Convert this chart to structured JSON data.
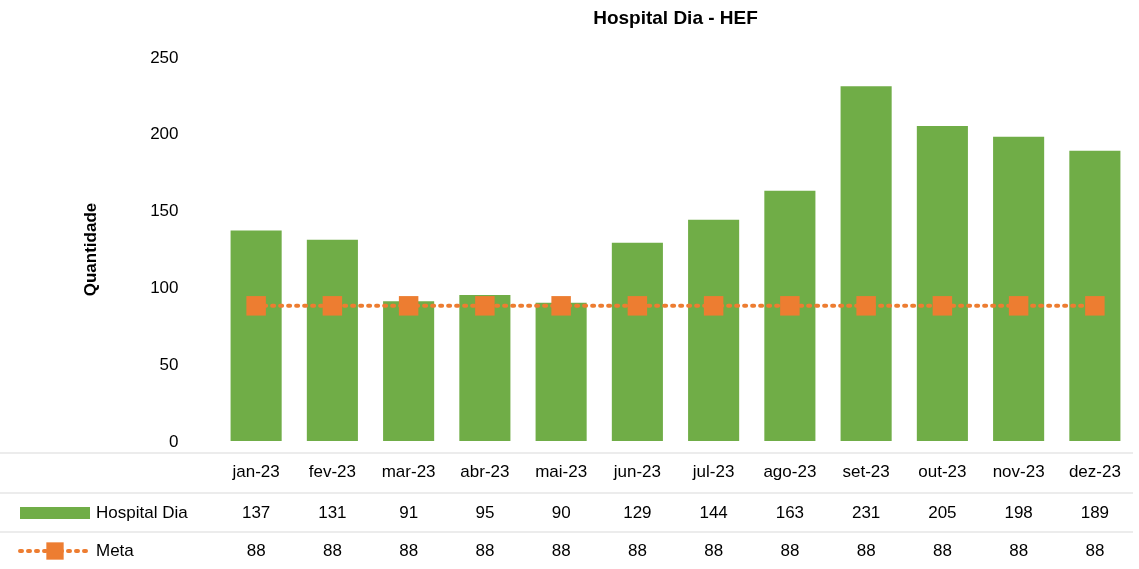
{
  "chart_data": {
    "type": "bar",
    "title": "Hospital Dia - HEF",
    "ylabel": "Quantidade",
    "categories": [
      "jan-23",
      "fev-23",
      "mar-23",
      "abr-23",
      "mai-23",
      "jun-23",
      "jul-23",
      "ago-23",
      "set-23",
      "out-23",
      "nov-23",
      "dez-23"
    ],
    "series": [
      {
        "name": "Hospital Dia",
        "color": "#70ad47",
        "values": [
          137,
          131,
          91,
          95,
          90,
          129,
          144,
          163,
          231,
          205,
          198,
          189
        ]
      },
      {
        "name": "Meta",
        "type": "line",
        "color": "#ed7d31",
        "marker": "square",
        "line_style": "dotted",
        "values": [
          88,
          88,
          88,
          88,
          88,
          88,
          88,
          88,
          88,
          88,
          88,
          88
        ]
      }
    ],
    "ylim": [
      0,
      250
    ],
    "yticks": [
      0,
      50,
      100,
      150,
      200,
      250
    ],
    "grid": false,
    "legend": "bottom",
    "data_labels": true
  }
}
